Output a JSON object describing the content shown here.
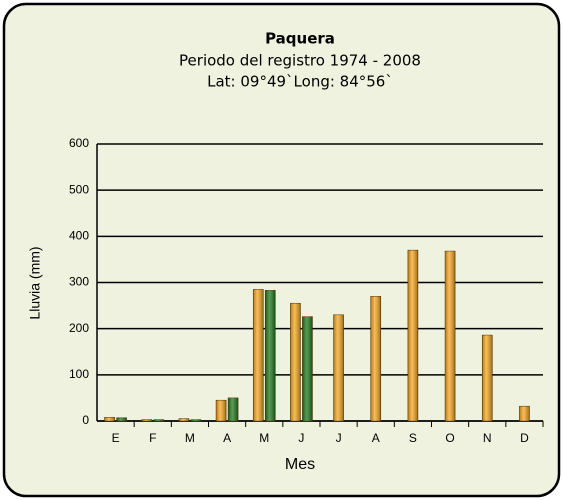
{
  "chart_data": {
    "type": "bar",
    "title": "Paquera",
    "subtitle": [
      "Periodo del registro 1974 - 2008",
      "Lat: 09°49`Long: 84°56`"
    ],
    "x_label": "Mes",
    "y_label": "Lluvia (mm)",
    "categories": [
      "E",
      "F",
      "M",
      "A",
      "M",
      "J",
      "J",
      "A",
      "S",
      "O",
      "N",
      "D"
    ],
    "series": [
      {
        "color": "#f5a623",
        "values": [
          8,
          3,
          5,
          45,
          285,
          255,
          230,
          270,
          370,
          368,
          186,
          32
        ]
      },
      {
        "color": "#1f7a1f",
        "values": [
          7,
          3,
          3,
          50,
          283,
          226,
          null,
          null,
          null,
          null,
          null,
          null
        ]
      }
    ],
    "ylim": [
      0,
      600
    ],
    "yticks": [
      0,
      100,
      200,
      300,
      400,
      500,
      600
    ],
    "grid": true
  }
}
